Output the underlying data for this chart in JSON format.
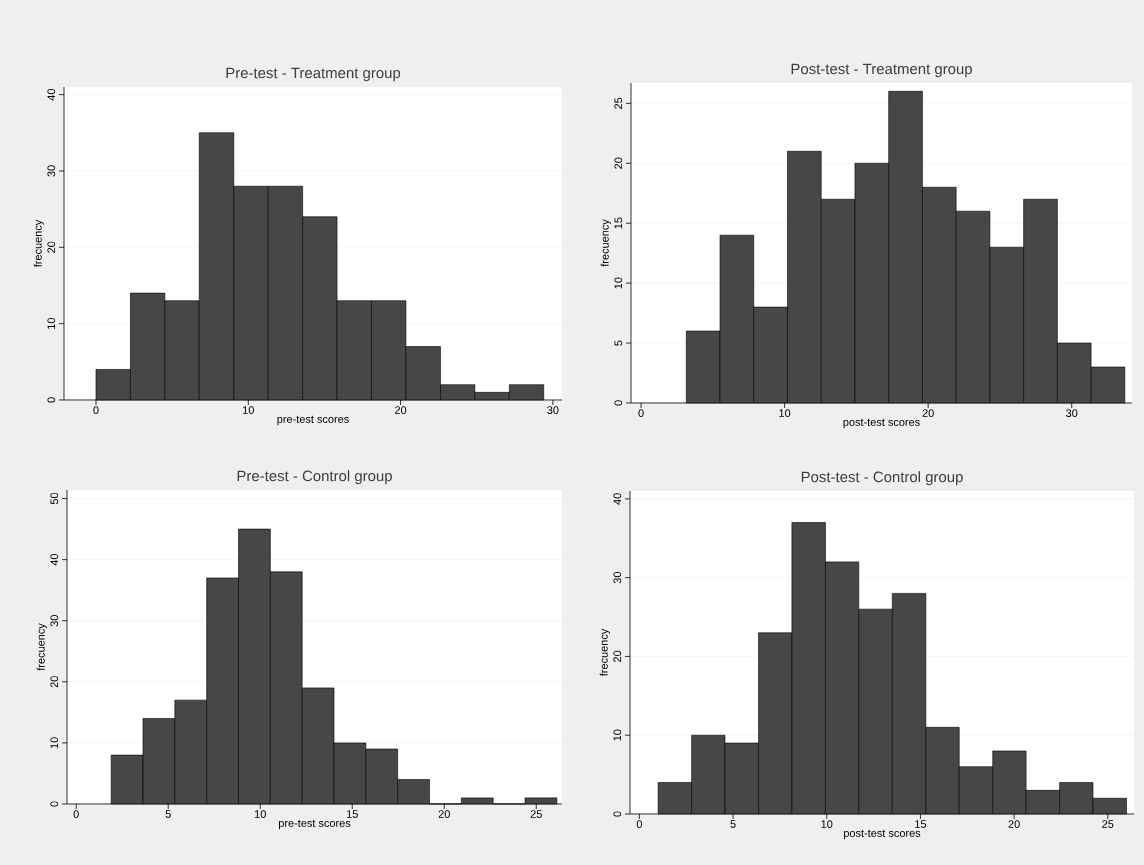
{
  "chart_data": [
    {
      "type": "histogram",
      "title": "Pre-test - Treatment group",
      "xlabel": "pre-test scores",
      "ylabel": "frecuency",
      "color": "#474747",
      "bins": [
        0,
        2.26,
        4.52,
        6.78,
        9.05,
        11.31,
        13.57,
        15.83,
        18.09,
        20.35,
        22.62,
        24.88,
        27.14,
        29.4
      ],
      "values": [
        4,
        14,
        13,
        35,
        28,
        28,
        24,
        13,
        13,
        7,
        2,
        1,
        2
      ],
      "xlim": [
        -2.1,
        30.6
      ],
      "xticks": [
        0,
        10,
        20,
        30
      ],
      "ylim": [
        0,
        41
      ],
      "yticks": [
        0,
        10,
        20,
        30,
        40
      ],
      "grid": "y"
    },
    {
      "type": "histogram",
      "title": "Post-test - Treatment group",
      "xlabel": "post-test scores",
      "ylabel": "frecuency",
      "color": "#474747",
      "bins": [
        3.15,
        5.5,
        7.85,
        10.2,
        12.55,
        14.9,
        17.25,
        19.6,
        21.95,
        24.3,
        26.65,
        29.0,
        31.35,
        33.7
      ],
      "values": [
        6,
        14,
        8,
        21,
        17,
        20,
        26,
        18,
        16,
        13,
        17,
        5,
        3
      ],
      "xlim": [
        -0.7,
        34.2
      ],
      "xticks": [
        0,
        10,
        20,
        30
      ],
      "ylim": [
        0,
        26.7
      ],
      "yticks": [
        0,
        5,
        10,
        15,
        20,
        25
      ],
      "grid": "y"
    },
    {
      "type": "histogram",
      "title": "Pre-test - Control group",
      "xlabel": "pre-test scores",
      "ylabel": "frecuency",
      "color": "#474747",
      "bins": [
        1.9,
        3.63,
        5.36,
        7.09,
        8.82,
        10.55,
        12.28,
        14.01,
        15.74,
        17.47,
        19.2,
        20.93,
        22.66,
        24.39,
        26.12
      ],
      "values": [
        8,
        14,
        17,
        37,
        45,
        38,
        19,
        10,
        9,
        4,
        0,
        1,
        0,
        1
      ],
      "xlim": [
        -0.5,
        26.4
      ],
      "xticks": [
        0,
        5,
        10,
        15,
        20,
        25
      ],
      "ylim": [
        0,
        51.4
      ],
      "yticks": [
        0,
        10,
        20,
        30,
        40,
        50
      ],
      "grid": "y"
    },
    {
      "type": "histogram",
      "title": "Post-test - Control group",
      "xlabel": "post-test scores",
      "ylabel": "frecuency",
      "color": "#474747",
      "bins": [
        1.0,
        2.79,
        4.57,
        6.36,
        8.14,
        9.93,
        11.71,
        13.5,
        15.29,
        17.07,
        18.86,
        20.64,
        22.43,
        24.21,
        26.0
      ],
      "values": [
        4,
        10,
        9,
        23,
        37,
        32,
        26,
        28,
        11,
        6,
        8,
        3,
        4,
        2
      ],
      "xlim": [
        -0.5,
        26.4
      ],
      "xticks": [
        0,
        5,
        10,
        15,
        20,
        25
      ],
      "ylim": [
        0,
        41
      ],
      "yticks": [
        0,
        10,
        20,
        30,
        40
      ],
      "grid": "y"
    }
  ]
}
